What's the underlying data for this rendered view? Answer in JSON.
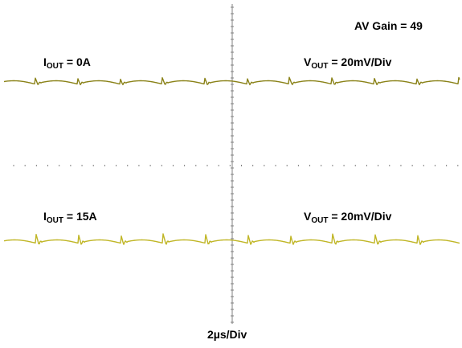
{
  "chart_data": {
    "type": "line",
    "title": "",
    "xlabel": "2µs/Div",
    "ylabel": "",
    "grid": false,
    "colors": {
      "trace_top": "#8a8218",
      "trace_bottom": "#c0b626",
      "axis": "#808080"
    },
    "annotations": {
      "gain": "AV Gain = 49",
      "top_current": {
        "sym": "I",
        "sub": "OUT",
        "rest": " = 0A"
      },
      "top_voltage": {
        "sym": "V",
        "sub": "OUT",
        "rest": " = 20mV/Div"
      },
      "bottom_current": {
        "sym": "I",
        "sub": "OUT",
        "rest": " = 15A"
      },
      "bottom_voltage": {
        "sym": "V",
        "sub": "OUT",
        "rest": " = 20mV/Div"
      }
    },
    "x_range_div": [
      0,
      10
    ],
    "period_div": 0.93,
    "series": [
      {
        "current_A": 0,
        "ripple_mV": 5,
        "spike_mV": 7,
        "phase_div": 0.68
      },
      {
        "current_A": 15,
        "ripple_mV": 5,
        "spike_mV": 10,
        "phase_div": 0.7
      }
    ]
  }
}
